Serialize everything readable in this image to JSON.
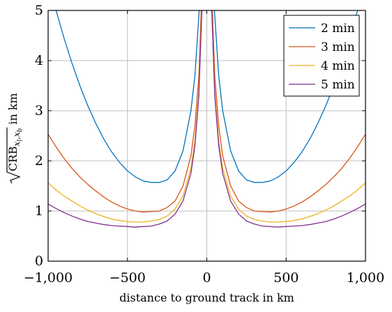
{
  "chart_data": {
    "type": "line",
    "title": "",
    "xlabel": "distance to ground track in km",
    "ylabel_parts": {
      "root": "CRB",
      "subscript": "x",
      "sub_i": "l",
      "sub_mid": ",x",
      "sub_b": "b",
      "suffix": " in km"
    },
    "xlim": [
      -1000,
      1000
    ],
    "ylim": [
      0,
      5
    ],
    "x_ticks": [
      -1000,
      -500,
      0,
      500,
      1000
    ],
    "x_tick_labels": [
      "−1,000",
      "−500",
      "0",
      "500",
      "1,000"
    ],
    "y_ticks": [
      0,
      1,
      2,
      3,
      4,
      5
    ],
    "y_tick_labels": [
      "0",
      "1",
      "2",
      "3",
      "4",
      "5"
    ],
    "grid": true,
    "legend_position": "top-right",
    "x": [
      -1000,
      -950,
      -900,
      -850,
      -800,
      -750,
      -700,
      -650,
      -600,
      -550,
      -500,
      -450,
      -400,
      -350,
      -300,
      -250,
      -200,
      -150,
      -100,
      -75,
      -50,
      -30,
      30,
      50,
      75,
      100,
      150,
      200,
      250,
      300,
      350,
      400,
      450,
      500,
      550,
      600,
      650,
      700,
      750,
      800,
      850,
      900,
      950,
      1000
    ],
    "series": [
      {
        "name": "2 min",
        "color": "#0072bd",
        "values": [
          5.6,
          5.0,
          4.45,
          3.95,
          3.5,
          3.1,
          2.75,
          2.44,
          2.18,
          1.97,
          1.8,
          1.68,
          1.6,
          1.57,
          1.57,
          1.62,
          1.8,
          2.2,
          3.0,
          3.7,
          4.9,
          6.0,
          6.0,
          4.9,
          3.7,
          3.0,
          2.2,
          1.8,
          1.62,
          1.57,
          1.57,
          1.6,
          1.68,
          1.8,
          1.97,
          2.18,
          2.44,
          2.75,
          3.1,
          3.5,
          3.95,
          4.45,
          5.0,
          5.6
        ]
      },
      {
        "name": "3 min",
        "color": "#d95319",
        "values": [
          2.53,
          2.28,
          2.05,
          1.85,
          1.68,
          1.53,
          1.4,
          1.28,
          1.18,
          1.1,
          1.04,
          1.0,
          0.98,
          0.99,
          1.0,
          1.07,
          1.2,
          1.5,
          2.1,
          2.7,
          3.7,
          5.5,
          5.5,
          3.7,
          2.7,
          2.1,
          1.5,
          1.2,
          1.07,
          1.0,
          0.99,
          0.98,
          1.0,
          1.04,
          1.1,
          1.18,
          1.28,
          1.4,
          1.53,
          1.68,
          1.85,
          2.05,
          2.28,
          2.53
        ]
      },
      {
        "name": "4 min",
        "color": "#edb120",
        "values": [
          1.56,
          1.42,
          1.3,
          1.2,
          1.1,
          1.02,
          0.95,
          0.89,
          0.84,
          0.81,
          0.79,
          0.78,
          0.78,
          0.8,
          0.83,
          0.9,
          1.04,
          1.3,
          1.85,
          2.4,
          3.4,
          5.2,
          5.2,
          3.4,
          2.4,
          1.85,
          1.3,
          1.04,
          0.9,
          0.83,
          0.8,
          0.78,
          0.78,
          0.79,
          0.81,
          0.84,
          0.89,
          0.95,
          1.02,
          1.1,
          1.2,
          1.3,
          1.42,
          1.56
        ]
      },
      {
        "name": "5 min",
        "color": "#7e2f8e",
        "values": [
          1.14,
          1.05,
          0.97,
          0.9,
          0.84,
          0.79,
          0.76,
          0.73,
          0.71,
          0.7,
          0.69,
          0.68,
          0.69,
          0.7,
          0.74,
          0.8,
          0.94,
          1.2,
          1.75,
          2.3,
          3.3,
          5.1,
          5.1,
          3.3,
          2.3,
          1.75,
          1.2,
          0.94,
          0.8,
          0.74,
          0.7,
          0.69,
          0.68,
          0.69,
          0.7,
          0.71,
          0.73,
          0.76,
          0.79,
          0.84,
          0.9,
          0.97,
          1.05,
          1.14
        ]
      }
    ]
  }
}
